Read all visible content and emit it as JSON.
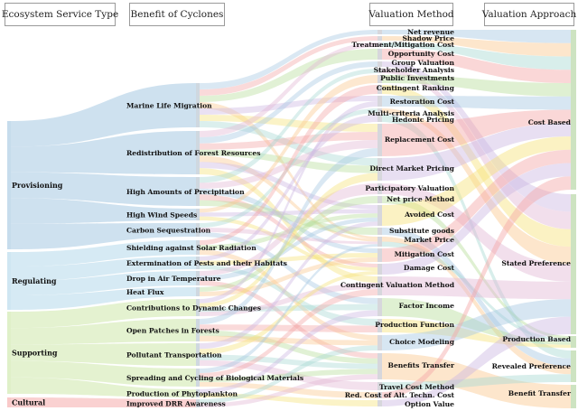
{
  "headers": {
    "ecosystem_service_type": "Ecosystem Service Type",
    "benefit_of_cyclones": "Benefit of Cyclones",
    "valuation_method": "Valuation Method",
    "valuation_approach": "Valuation Approach"
  },
  "service_types": [
    {
      "id": "provisioning",
      "label": "Provisioning",
      "color": "#c6dcec"
    },
    {
      "id": "regulating",
      "label": "Regulating",
      "color": "#cfe6f2"
    },
    {
      "id": "supporting",
      "label": "Supporting",
      "color": "#dff0c8"
    },
    {
      "id": "cultural",
      "label": "Cultural",
      "color": "#f9c9c9"
    }
  ],
  "benefits": [
    {
      "id": "marine",
      "label": "Marine Life Migration",
      "color": "#c6dcec"
    },
    {
      "id": "forest",
      "label": "Redistribution of Forest Resources",
      "color": "#c6dcec"
    },
    {
      "id": "precip",
      "label": "High Amounts of Precipitation",
      "color": "#c6dcec"
    },
    {
      "id": "wind",
      "label": "High Wind Speeds",
      "color": "#c6dcec"
    },
    {
      "id": "carbon",
      "label": "Carbon Sequestration",
      "color": "#d5e9c0"
    },
    {
      "id": "shield",
      "label": "Shielding against Solar Radiation",
      "color": "#d5e9c0"
    },
    {
      "id": "pests",
      "label": "Extermination of Pests and their Habitats",
      "color": "#d5e9c0"
    },
    {
      "id": "airtemp",
      "label": "Drop in Air Temperature",
      "color": "#d5e9c0"
    },
    {
      "id": "heatflux",
      "label": "Heat Flux",
      "color": "#d5e9c0"
    },
    {
      "id": "dynamic",
      "label": "Contributions to Dynamic Changes",
      "color": "#f9c9c9"
    },
    {
      "id": "patches",
      "label": "Open Patches in Forests",
      "color": "#f9c9c9"
    },
    {
      "id": "pollutant",
      "label": "Pollutant Transportation",
      "color": "#f9c9c9"
    },
    {
      "id": "cycling",
      "label": "Spreading and Cycling of Biological Materials",
      "color": "#f9c9c9"
    },
    {
      "id": "phyto",
      "label": "Production of Phytoplankton",
      "color": "#fbd7b6"
    },
    {
      "id": "drr",
      "label": "Improved DRR Awareness",
      "color": "#fbd7b6"
    }
  ],
  "methods": [
    {
      "id": "netrev",
      "label": "Net revenue",
      "color": "#c6dcec"
    },
    {
      "id": "shadow",
      "label": "Shadow Price",
      "color": "#c6dcec"
    },
    {
      "id": "treat",
      "label": "Treatment/Mitigation Cost",
      "color": "#d5e9c0"
    },
    {
      "id": "opp",
      "label": "Opportunity Cost",
      "color": "#e3d7ee"
    },
    {
      "id": "group",
      "label": "Group Valuation",
      "color": "#ececec"
    },
    {
      "id": "stake",
      "label": "Stakeholder Analysis",
      "color": "#ececec"
    },
    {
      "id": "pubinv",
      "label": "Public Investments",
      "color": "#fbd7b6"
    },
    {
      "id": "contrank",
      "label": "Contingent Ranking",
      "color": "#ececec"
    },
    {
      "id": "restor",
      "label": "Restoration Cost",
      "color": "#c6dcec"
    },
    {
      "id": "multi",
      "label": "Multi-criteria Analysis",
      "color": "#ececec"
    },
    {
      "id": "hedonic",
      "label": "Hedonic Pricing",
      "color": "#c6dcec"
    },
    {
      "id": "replace",
      "label": "Replacement Cost",
      "color": "#e3d7ee"
    },
    {
      "id": "direct",
      "label": "Direct Market Pricing",
      "color": "#fdf3a6"
    },
    {
      "id": "particip",
      "label": "Participatory Valuation",
      "color": "#fdf3a6"
    },
    {
      "id": "netprice",
      "label": "Net price Method",
      "color": "#ececec"
    },
    {
      "id": "avoided",
      "label": "Avoided Cost",
      "color": "#d5e9c0"
    },
    {
      "id": "subst",
      "label": "Substitute goods",
      "color": "#c6dcec"
    },
    {
      "id": "market",
      "label": "Market Price",
      "color": "#9ec3de"
    },
    {
      "id": "mitig",
      "label": "Mitigation Cost",
      "color": "#d5e9c0"
    },
    {
      "id": "damage",
      "label": "Damage Cost",
      "color": "#d5e9c0"
    },
    {
      "id": "cvm",
      "label": "Contingent Valuation Method",
      "color": "#fbd7b6"
    },
    {
      "id": "factor",
      "label": "Factor Income",
      "color": "#e3d7ee"
    },
    {
      "id": "prodfn",
      "label": "Production Function",
      "color": "#e3d7ee"
    },
    {
      "id": "choice",
      "label": "Choice Modeling",
      "color": "#fbd7b6"
    },
    {
      "id": "btransfer",
      "label": "Benefits Transfer",
      "color": "#fdf3a6"
    },
    {
      "id": "tcm",
      "label": "Travel Cost Method",
      "color": "#fdf3a6"
    },
    {
      "id": "redcost",
      "label": "Red. Cost of Alt. Techn. Cost",
      "color": "#c6dcec"
    },
    {
      "id": "option",
      "label": "Option Value",
      "color": "#c6dcec"
    }
  ],
  "approaches": [
    {
      "id": "cost",
      "label": "Cost Based",
      "color": "#e3efcf"
    },
    {
      "id": "stated",
      "label": "Stated Preference",
      "color": "#dbe9f3"
    },
    {
      "id": "production",
      "label": "Production Based",
      "color": "#d9ecd4"
    },
    {
      "id": "revealed",
      "label": "Revealed Preference",
      "color": "#e6f2d8"
    },
    {
      "id": "benefit",
      "label": "Benefit Transfer",
      "color": "#edf6e3"
    }
  ]
}
